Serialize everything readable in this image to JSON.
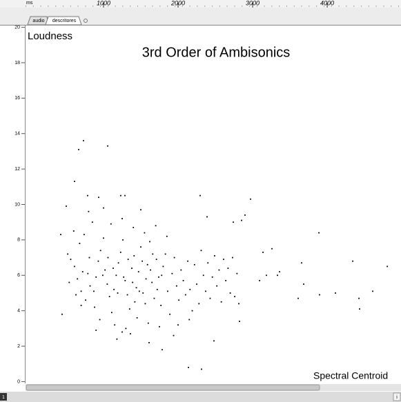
{
  "ruler_unit": "ms",
  "tabs": [
    "audio",
    "descritores"
  ],
  "status": {
    "left": "1",
    "right": "i"
  },
  "chart_data": {
    "type": "scatter",
    "title": "3rd Order of Ambisonics",
    "ylabel": "Loudness",
    "xlabel": "Spectral Centroid",
    "color": "#000000",
    "xlim": [
      -46,
      4990
    ],
    "xticks": [
      1000,
      2000,
      3000,
      4000
    ],
    "ylim": [
      -0.1,
      20.1
    ],
    "yticks": [
      0,
      2,
      4,
      6,
      8,
      10,
      12,
      14,
      16,
      18,
      20
    ],
    "x": [
      731,
      667,
      1056,
      611,
      500,
      426,
      444,
      2139,
      2315,
      1611,
      1787,
      2481,
      2972,
      2296,
      3889,
      4343,
      4806,
      4426,
      4435,
      4611,
      4111,
      3898,
      3611,
      3657,
      3685,
      3259,
      3139,
      3333,
      3361,
      2852,
      2898,
      2741,
      2389,
      3093,
      3185,
      2815,
      2824,
      1287,
      1231,
      935,
      787,
      520,
      610,
      650,
      700,
      560,
      680,
      740,
      790,
      820,
      760,
      880,
      900,
      930,
      960,
      1000,
      1020,
      1050,
      1080,
      1110,
      1140,
      1170,
      1200,
      1230,
      1260,
      1290,
      1320,
      1350,
      1380,
      1410,
      1440,
      1470,
      1500,
      1530,
      1560,
      1590,
      1620,
      1650,
      1680,
      1710,
      1740,
      1770,
      1800,
      1830,
      1860,
      1890,
      1920,
      1950,
      1980,
      2010,
      2040,
      2070,
      2100,
      2130,
      2160,
      2190,
      2220,
      2250,
      2280,
      2310,
      2340,
      2370,
      2400,
      2430,
      2460,
      2490,
      2520,
      2550,
      2580,
      2610,
      2640,
      2670,
      2700,
      2730,
      2760,
      2790,
      600,
      700,
      850,
      950,
      1100,
      1150,
      1250,
      1300,
      1400,
      1450,
      1550,
      1600,
      1700,
      1750,
      1850,
      540,
      630,
      720,
      810,
      870,
      990,
      1060,
      1130,
      1190,
      1270,
      1330,
      1390,
      1420,
      1480,
      1520,
      1570,
      1630,
      1660,
      1720,
      1780,
      1250,
      1180,
      1360,
      900,
      2000,
      2150,
      1940,
      800,
      1000,
      1500
    ],
    "values": [
      13.6,
      13.1,
      13.3,
      11.3,
      9.9,
      8.3,
      3.8,
      0.8,
      0.7,
      2.2,
      1.8,
      2.3,
      10.3,
      10.5,
      8.4,
      6.8,
      6.5,
      4.7,
      4.1,
      5.1,
      5.0,
      4.9,
      4.7,
      6.7,
      5.5,
      7.5,
      7.3,
      6.0,
      6.2,
      9.1,
      9.4,
      9.0,
      9.3,
      5.7,
      6.0,
      4.4,
      3.4,
      10.5,
      10.5,
      10.4,
      10.5,
      7.2,
      6.5,
      5.8,
      5.1,
      6.9,
      7.8,
      8.3,
      6.1,
      5.4,
      4.6,
      4.2,
      5.9,
      6.8,
      7.4,
      8.1,
      6.3,
      5.5,
      4.8,
      3.9,
      5.2,
      6.0,
      6.7,
      7.3,
      8.0,
      5.7,
      4.9,
      4.1,
      6.4,
      7.1,
      5.3,
      6.2,
      7.6,
      5.0,
      4.4,
      6.6,
      7.9,
      5.6,
      4.7,
      6.9,
      5.9,
      4.3,
      6.5,
      7.2,
      5.1,
      3.8,
      6.1,
      7.0,
      5.4,
      4.6,
      6.3,
      5.7,
      4.9,
      6.8,
      5.2,
      4.0,
      6.6,
      5.5,
      4.4,
      7.4,
      6.0,
      5.1,
      6.7,
      4.7,
      5.9,
      7.1,
      5.4,
      6.3,
      4.5,
      6.9,
      5.7,
      6.4,
      5.0,
      7.0,
      4.8,
      6.1,
      8.5,
      4.3,
      9.0,
      3.5,
      8.9,
      3.2,
      9.2,
      3.0,
      8.7,
      3.6,
      8.4,
      3.3,
      8.8,
      3.1,
      8.2,
      5.6,
      4.9,
      6.2,
      7.0,
      5.1,
      6.0,
      7.0,
      6.4,
      5.0,
      5.9,
      6.9,
      5.6,
      4.5,
      5.1,
      6.8,
      5.8,
      6.3,
      7.2,
      5.2,
      6.0,
      2.8,
      2.4,
      2.7,
      2.9,
      3.2,
      3.5,
      2.6,
      9.6,
      9.8,
      9.7
    ]
  }
}
